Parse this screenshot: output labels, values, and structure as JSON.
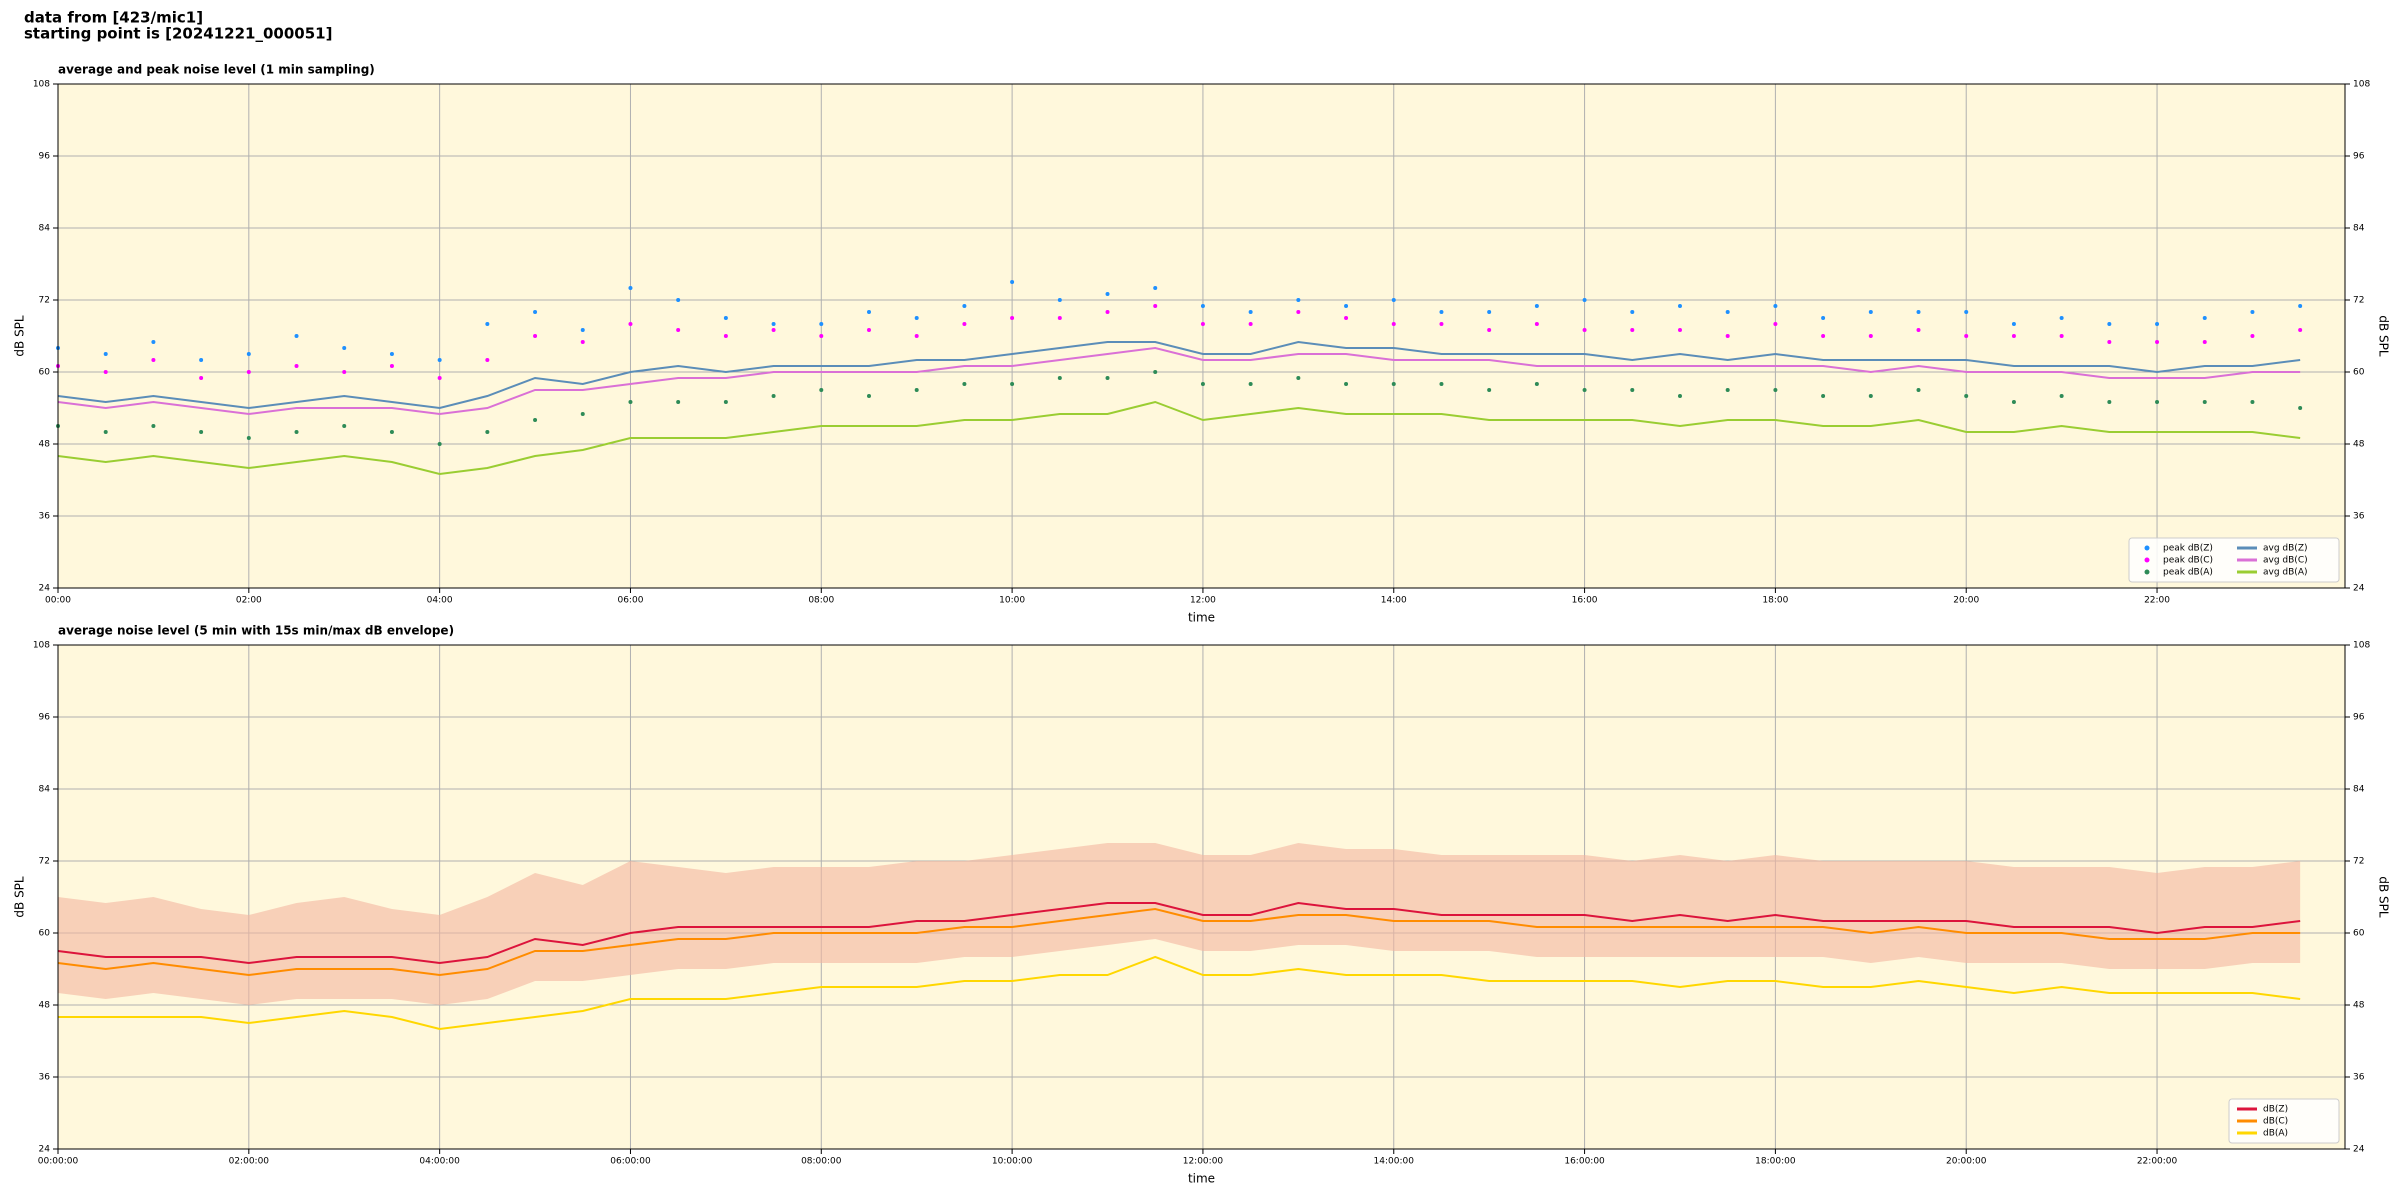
{
  "header": {
    "line1": "data from [423/mic1]",
    "line2": "starting point is [20241221_000051]"
  },
  "chart_data": [
    {
      "type": "line",
      "title": "average and peak noise level (1 min sampling)",
      "xlabel": "time",
      "ylabel": "dB SPL",
      "xlim": [
        0,
        23.97
      ],
      "ylim": [
        24,
        108
      ],
      "yticks": [
        24,
        36,
        48,
        60,
        72,
        84,
        96,
        108
      ],
      "xticks": [
        {
          "value": 0,
          "label": "00:00"
        },
        {
          "value": 2,
          "label": "02:00"
        },
        {
          "value": 4,
          "label": "04:00"
        },
        {
          "value": 6,
          "label": "06:00"
        },
        {
          "value": 8,
          "label": "08:00"
        },
        {
          "value": 10,
          "label": "10:00"
        },
        {
          "value": 12,
          "label": "12:00"
        },
        {
          "value": 14,
          "label": "14:00"
        },
        {
          "value": 16,
          "label": "16:00"
        },
        {
          "value": 18,
          "label": "18:00"
        },
        {
          "value": 20,
          "label": "20:00"
        },
        {
          "value": 22,
          "label": "22:00"
        }
      ],
      "grid": true,
      "legend": "lower right",
      "legend_columns": 2,
      "x": [
        0,
        0.5,
        1,
        1.5,
        2,
        2.5,
        3,
        3.5,
        4,
        4.5,
        5,
        5.5,
        6,
        6.5,
        7,
        7.5,
        8,
        8.5,
        9,
        9.5,
        10,
        10.5,
        11,
        11.5,
        12,
        12.5,
        13,
        13.5,
        14,
        14.5,
        15,
        15.5,
        16,
        16.5,
        17,
        17.5,
        18,
        18.5,
        19,
        19.5,
        20,
        20.5,
        21,
        21.5,
        22,
        22.5,
        23,
        23.5
      ],
      "series": [
        {
          "name": "peak dB(Z)",
          "type": "scatter",
          "color": "#1e90ff",
          "values": [
            64,
            63,
            65,
            62,
            63,
            66,
            64,
            63,
            62,
            68,
            70,
            67,
            74,
            72,
            69,
            68,
            68,
            70,
            69,
            71,
            75,
            72,
            73,
            74,
            71,
            70,
            72,
            71,
            72,
            70,
            70,
            71,
            72,
            70,
            71,
            70,
            71,
            69,
            70,
            70,
            70,
            68,
            69,
            68,
            68,
            69,
            70,
            71
          ]
        },
        {
          "name": "peak dB(C)",
          "type": "scatter",
          "color": "#ff00ff",
          "values": [
            61,
            60,
            62,
            59,
            60,
            61,
            60,
            61,
            59,
            62,
            66,
            65,
            68,
            67,
            66,
            67,
            66,
            67,
            66,
            68,
            69,
            69,
            70,
            71,
            68,
            68,
            70,
            69,
            68,
            68,
            67,
            68,
            67,
            67,
            67,
            66,
            68,
            66,
            66,
            67,
            66,
            66,
            66,
            65,
            65,
            65,
            66,
            67
          ]
        },
        {
          "name": "peak dB(A)",
          "type": "scatter",
          "color": "#2e8b57",
          "values": [
            51,
            50,
            51,
            50,
            49,
            50,
            51,
            50,
            48,
            50,
            52,
            53,
            55,
            55,
            55,
            56,
            57,
            56,
            57,
            58,
            58,
            59,
            59,
            60,
            58,
            58,
            59,
            58,
            58,
            58,
            57,
            58,
            57,
            57,
            56,
            57,
            57,
            56,
            56,
            57,
            56,
            55,
            56,
            55,
            55,
            55,
            55,
            54
          ]
        },
        {
          "name": "avg dB(Z)",
          "type": "line",
          "color": "#5b8db8",
          "values": [
            56,
            55,
            56,
            55,
            54,
            55,
            56,
            55,
            54,
            56,
            59,
            58,
            60,
            61,
            60,
            61,
            61,
            61,
            62,
            62,
            63,
            64,
            65,
            65,
            63,
            63,
            65,
            64,
            64,
            63,
            63,
            63,
            63,
            62,
            63,
            62,
            63,
            62,
            62,
            62,
            62,
            61,
            61,
            61,
            60,
            61,
            61,
            62
          ]
        },
        {
          "name": "avg dB(C)",
          "type": "line",
          "color": "#da70d6",
          "values": [
            55,
            54,
            55,
            54,
            53,
            54,
            54,
            54,
            53,
            54,
            57,
            57,
            58,
            59,
            59,
            60,
            60,
            60,
            60,
            61,
            61,
            62,
            63,
            64,
            62,
            62,
            63,
            63,
            62,
            62,
            62,
            61,
            61,
            61,
            61,
            61,
            61,
            61,
            60,
            61,
            60,
            60,
            60,
            59,
            59,
            59,
            60,
            60
          ]
        },
        {
          "name": "avg dB(A)",
          "type": "line",
          "color": "#9acd32",
          "values": [
            46,
            45,
            46,
            45,
            44,
            45,
            46,
            45,
            43,
            44,
            46,
            47,
            49,
            49,
            49,
            50,
            51,
            51,
            51,
            52,
            52,
            53,
            53,
            55,
            52,
            53,
            54,
            53,
            53,
            53,
            52,
            52,
            52,
            52,
            51,
            52,
            52,
            51,
            51,
            52,
            50,
            50,
            51,
            50,
            50,
            50,
            50,
            49
          ]
        }
      ]
    },
    {
      "type": "line",
      "title": "average noise level (5 min with 15s min/max dB envelope)",
      "xlabel": "time",
      "ylabel": "dB SPL",
      "xlim": [
        0,
        23.97
      ],
      "ylim": [
        24,
        108
      ],
      "yticks": [
        24,
        36,
        48,
        60,
        72,
        84,
        96,
        108
      ],
      "xticks": [
        {
          "value": 0,
          "label": "00:00:00"
        },
        {
          "value": 2,
          "label": "02:00:00"
        },
        {
          "value": 4,
          "label": "04:00:00"
        },
        {
          "value": 6,
          "label": "06:00:00"
        },
        {
          "value": 8,
          "label": "08:00:00"
        },
        {
          "value": 10,
          "label": "10:00:00"
        },
        {
          "value": 12,
          "label": "12:00:00"
        },
        {
          "value": 14,
          "label": "14:00:00"
        },
        {
          "value": 16,
          "label": "16:00:00"
        },
        {
          "value": 18,
          "label": "18:00:00"
        },
        {
          "value": 20,
          "label": "20:00:00"
        },
        {
          "value": 22,
          "label": "22:00:00"
        }
      ],
      "grid": true,
      "legend": "lower right",
      "legend_columns": 1,
      "x": [
        0,
        0.5,
        1,
        1.5,
        2,
        2.5,
        3,
        3.5,
        4,
        4.5,
        5,
        5.5,
        6,
        6.5,
        7,
        7.5,
        8,
        8.5,
        9,
        9.5,
        10,
        10.5,
        11,
        11.5,
        12,
        12.5,
        13,
        13.5,
        14,
        14.5,
        15,
        15.5,
        16,
        16.5,
        17,
        17.5,
        18,
        18.5,
        19,
        19.5,
        20,
        20.5,
        21,
        21.5,
        22,
        22.5,
        23,
        23.5
      ],
      "envelope": {
        "color": "#f4b6a0",
        "max": [
          66,
          65,
          66,
          64,
          63,
          65,
          66,
          64,
          63,
          66,
          70,
          68,
          72,
          71,
          70,
          71,
          71,
          71,
          72,
          72,
          73,
          74,
          75,
          75,
          73,
          73,
          75,
          74,
          74,
          73,
          73,
          73,
          73,
          72,
          73,
          72,
          73,
          72,
          72,
          72,
          72,
          71,
          71,
          71,
          70,
          71,
          71,
          72
        ],
        "min": [
          50,
          49,
          50,
          49,
          48,
          49,
          49,
          49,
          48,
          49,
          52,
          52,
          53,
          54,
          54,
          55,
          55,
          55,
          55,
          56,
          56,
          57,
          58,
          59,
          57,
          57,
          58,
          58,
          57,
          57,
          57,
          56,
          56,
          56,
          56,
          56,
          56,
          56,
          55,
          56,
          55,
          55,
          55,
          54,
          54,
          54,
          55,
          55
        ]
      },
      "series": [
        {
          "name": "dB(Z)",
          "type": "line",
          "color": "#dc143c",
          "values": [
            57,
            56,
            56,
            56,
            55,
            56,
            56,
            56,
            55,
            56,
            59,
            58,
            60,
            61,
            61,
            61,
            61,
            61,
            62,
            62,
            63,
            64,
            65,
            65,
            63,
            63,
            65,
            64,
            64,
            63,
            63,
            63,
            63,
            62,
            63,
            62,
            63,
            62,
            62,
            62,
            62,
            61,
            61,
            61,
            60,
            61,
            61,
            62
          ]
        },
        {
          "name": "dB(C)",
          "type": "line",
          "color": "#ff8c00",
          "values": [
            55,
            54,
            55,
            54,
            53,
            54,
            54,
            54,
            53,
            54,
            57,
            57,
            58,
            59,
            59,
            60,
            60,
            60,
            60,
            61,
            61,
            62,
            63,
            64,
            62,
            62,
            63,
            63,
            62,
            62,
            62,
            61,
            61,
            61,
            61,
            61,
            61,
            61,
            60,
            61,
            60,
            60,
            60,
            59,
            59,
            59,
            60,
            60
          ]
        },
        {
          "name": "dB(A)",
          "type": "line",
          "color": "#ffd700",
          "values": [
            46,
            46,
            46,
            46,
            45,
            46,
            47,
            46,
            44,
            45,
            46,
            47,
            49,
            49,
            49,
            50,
            51,
            51,
            51,
            52,
            52,
            53,
            53,
            56,
            53,
            53,
            54,
            53,
            53,
            53,
            52,
            52,
            52,
            52,
            51,
            52,
            52,
            51,
            51,
            52,
            51,
            50,
            51,
            50,
            50,
            50,
            50,
            49
          ]
        }
      ]
    }
  ]
}
